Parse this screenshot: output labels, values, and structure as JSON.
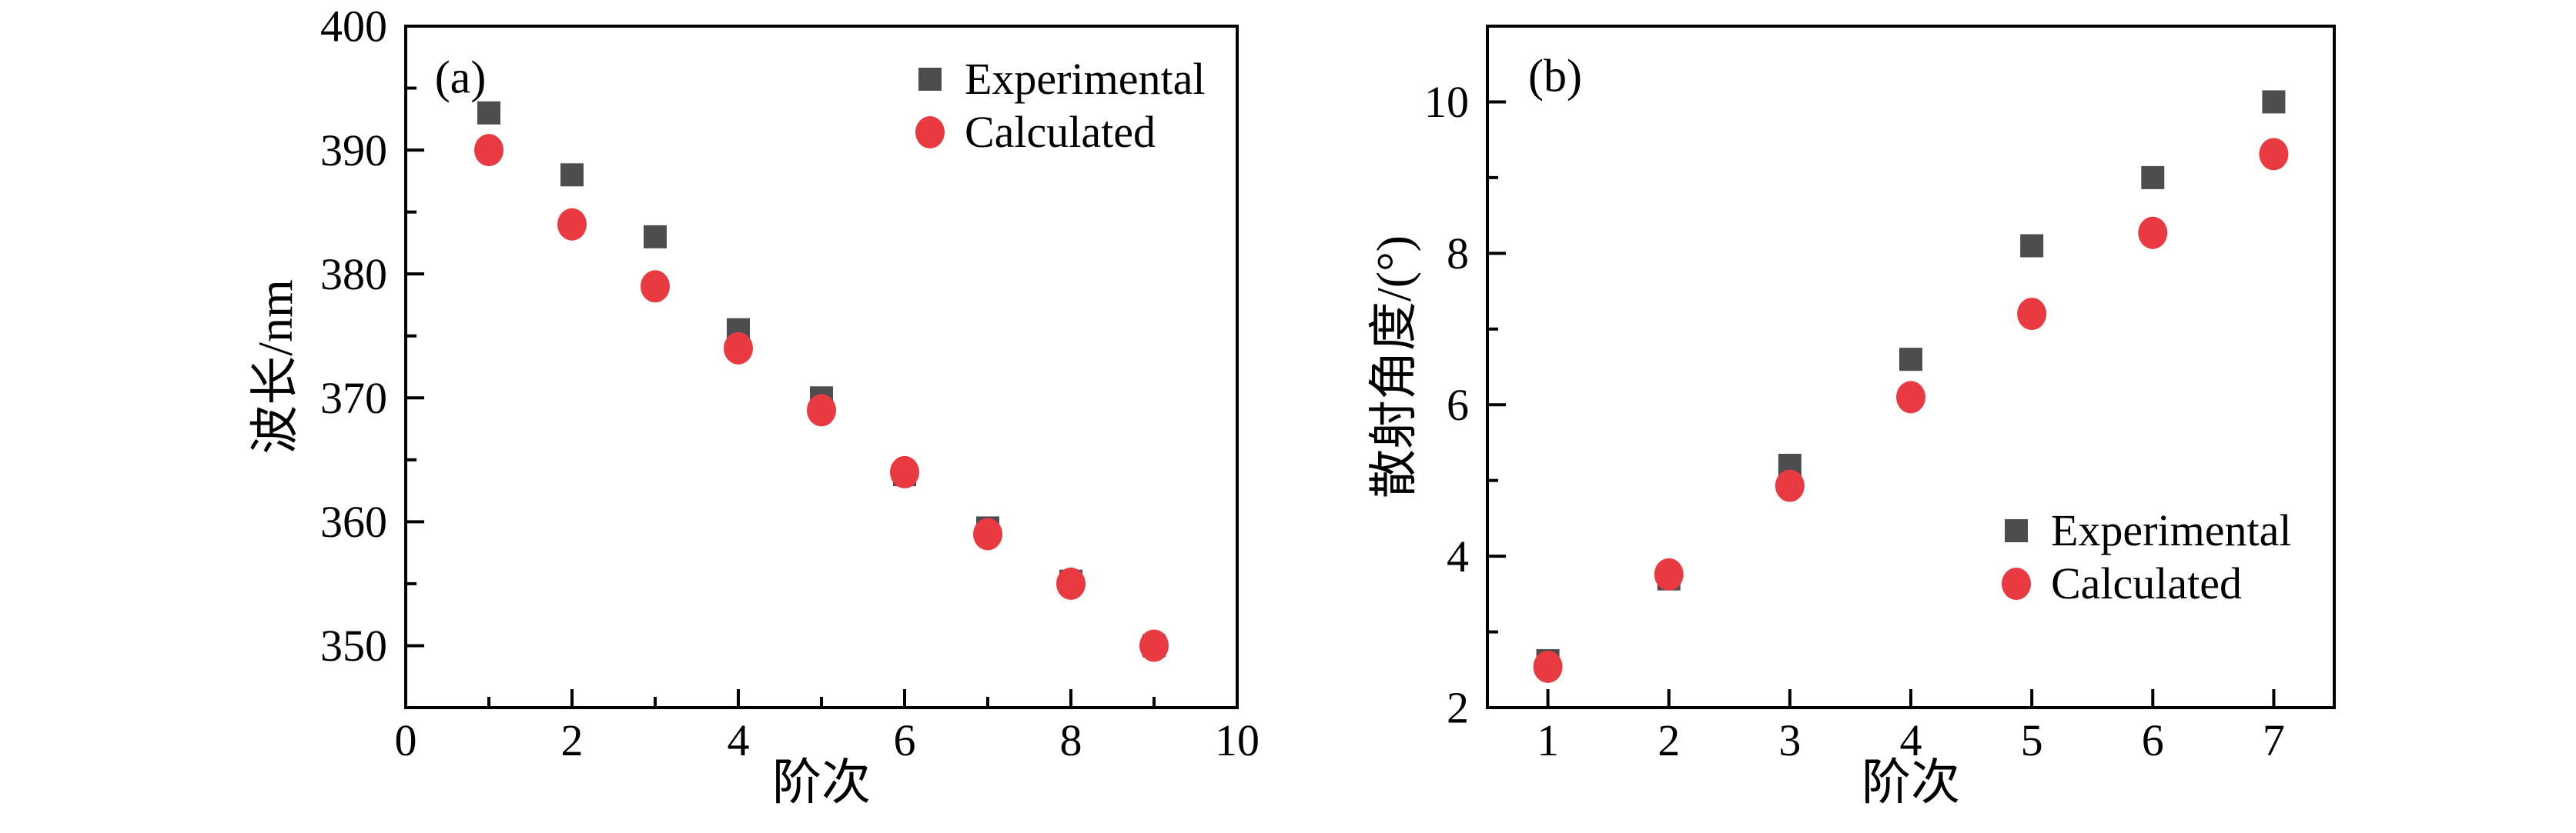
{
  "figure": {
    "colors": {
      "experimental": "#4d4d4f",
      "calculated": "#e83a40",
      "axis": "#000000",
      "background": "#ffffff"
    }
  },
  "chart_data": [
    {
      "id": "a",
      "type": "scatter",
      "panel_label": "(a)",
      "xlabel": "阶次",
      "ylabel": "波长/nm",
      "xlim": [
        0,
        10
      ],
      "ylim": [
        345,
        400
      ],
      "x_major_ticks": [
        0,
        2,
        4,
        6,
        8,
        10
      ],
      "x_minor_ticks": [
        1,
        3,
        5,
        7,
        9
      ],
      "y_major_ticks": [
        350,
        360,
        370,
        380,
        390,
        400
      ],
      "y_minor_ticks": [
        355,
        365,
        375,
        385,
        395
      ],
      "grid": false,
      "legend_position": "top-right",
      "x": [
        1,
        2,
        3,
        4,
        5,
        6,
        7,
        8,
        9
      ],
      "series": [
        {
          "name": "Experimental",
          "marker": "square",
          "values": [
            393,
            388,
            383,
            375.5,
            370,
            363.8,
            359.5,
            355.2,
            350
          ]
        },
        {
          "name": "Calculated",
          "marker": "circle",
          "values": [
            390,
            384,
            379,
            374,
            369,
            364,
            359,
            355,
            350
          ]
        }
      ]
    },
    {
      "id": "b",
      "type": "scatter",
      "panel_label": "(b)",
      "xlabel": "阶次",
      "ylabel": "散射角度/(°)",
      "xlim": [
        0.5,
        7.5
      ],
      "ylim": [
        2,
        11
      ],
      "x_major_ticks": [
        1,
        2,
        3,
        4,
        5,
        6,
        7
      ],
      "x_minor_ticks": [],
      "y_major_ticks": [
        2,
        4,
        6,
        8,
        10
      ],
      "y_minor_ticks": [
        3,
        5,
        7,
        9
      ],
      "grid": false,
      "legend_position": "right-lower",
      "x": [
        1,
        2,
        3,
        4,
        5,
        6,
        7
      ],
      "series": [
        {
          "name": "Experimental",
          "marker": "square",
          "values": [
            2.62,
            3.7,
            5.2,
            6.6,
            8.1,
            9.0,
            10.0
          ]
        },
        {
          "name": "Calculated",
          "marker": "circle",
          "values": [
            2.54,
            3.76,
            4.93,
            6.1,
            7.2,
            8.27,
            9.31
          ]
        }
      ]
    }
  ]
}
